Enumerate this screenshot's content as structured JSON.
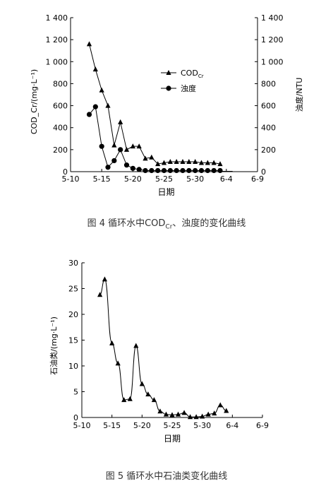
{
  "chart_data": [
    {
      "type": "line",
      "title": "",
      "xlabel": "日期",
      "ylabel_left": "COD_Cr/(mg·L⁻¹)",
      "ylabel_right": "浊度/NTU",
      "x_ticks": [
        "5-10",
        "5-15",
        "5-20",
        "5-25",
        "5-30",
        "6-4",
        "6-9"
      ],
      "ylim_left": [
        0,
        1400
      ],
      "yticks_left": [
        "0",
        "200",
        "400",
        "600",
        "800",
        "1 000",
        "1 200",
        "1 400"
      ],
      "ylim_right": [
        0,
        1400
      ],
      "yticks_right": [
        "0",
        "200",
        "400",
        "600",
        "800",
        "1 000",
        "1 200",
        "1 400"
      ],
      "legend": {
        "position": "center-right",
        "entries": [
          "COD",
          "浊度"
        ],
        "cod_subscript": "Cr"
      },
      "series": [
        {
          "name": "COD",
          "axis": "left",
          "marker": "triangle",
          "x": [
            13,
            14,
            15,
            16,
            17,
            18,
            19,
            20,
            21,
            22,
            23,
            24,
            25,
            26,
            27,
            28,
            29,
            30,
            31,
            32,
            33,
            34
          ],
          "values": [
            1160,
            930,
            740,
            600,
            240,
            450,
            200,
            230,
            230,
            120,
            130,
            70,
            80,
            90,
            90,
            90,
            90,
            90,
            80,
            80,
            80,
            70
          ]
        },
        {
          "name": "浊度",
          "axis": "right",
          "marker": "circle",
          "x": [
            13,
            14,
            15,
            16,
            17,
            18,
            19,
            20,
            21,
            22,
            23,
            24,
            25,
            26,
            27,
            28,
            29,
            30,
            31,
            32,
            33,
            34
          ],
          "values": [
            520,
            590,
            230,
            40,
            100,
            200,
            60,
            30,
            20,
            10,
            10,
            10,
            10,
            10,
            10,
            10,
            10,
            10,
            10,
            10,
            10,
            10
          ]
        }
      ]
    },
    {
      "type": "line",
      "title": "",
      "xlabel": "日期",
      "ylabel": "石油类/(mg·L⁻¹)",
      "x_ticks": [
        "5-10",
        "5-15",
        "5-20",
        "5-25",
        "5-30",
        "6-4",
        "6-9"
      ],
      "ylim": [
        0,
        30
      ],
      "yticks": [
        "0",
        "5",
        "10",
        "15",
        "20",
        "25",
        "30"
      ],
      "series": [
        {
          "name": "",
          "marker": "triangle",
          "x": [
            13,
            13.8,
            15,
            16,
            17,
            18,
            19,
            20,
            21,
            22,
            23,
            24,
            25,
            26,
            27,
            28,
            29,
            30,
            31,
            32,
            33,
            34
          ],
          "values": [
            23.8,
            26.8,
            14.4,
            10.5,
            3.4,
            3.6,
            13.9,
            6.5,
            4.5,
            3.4,
            1.2,
            0.6,
            0.5,
            0.6,
            0.9,
            0.1,
            0.1,
            0.2,
            0.6,
            0.8,
            2.4,
            1.3
          ]
        }
      ]
    }
  ],
  "captions": {
    "fig4_prefix": "图 4 循环水中COD",
    "fig4_sub": "Cr",
    "fig4_suffix": "、浊度的变化曲线",
    "fig5": "图 5 循环水中石油类变化曲线"
  }
}
